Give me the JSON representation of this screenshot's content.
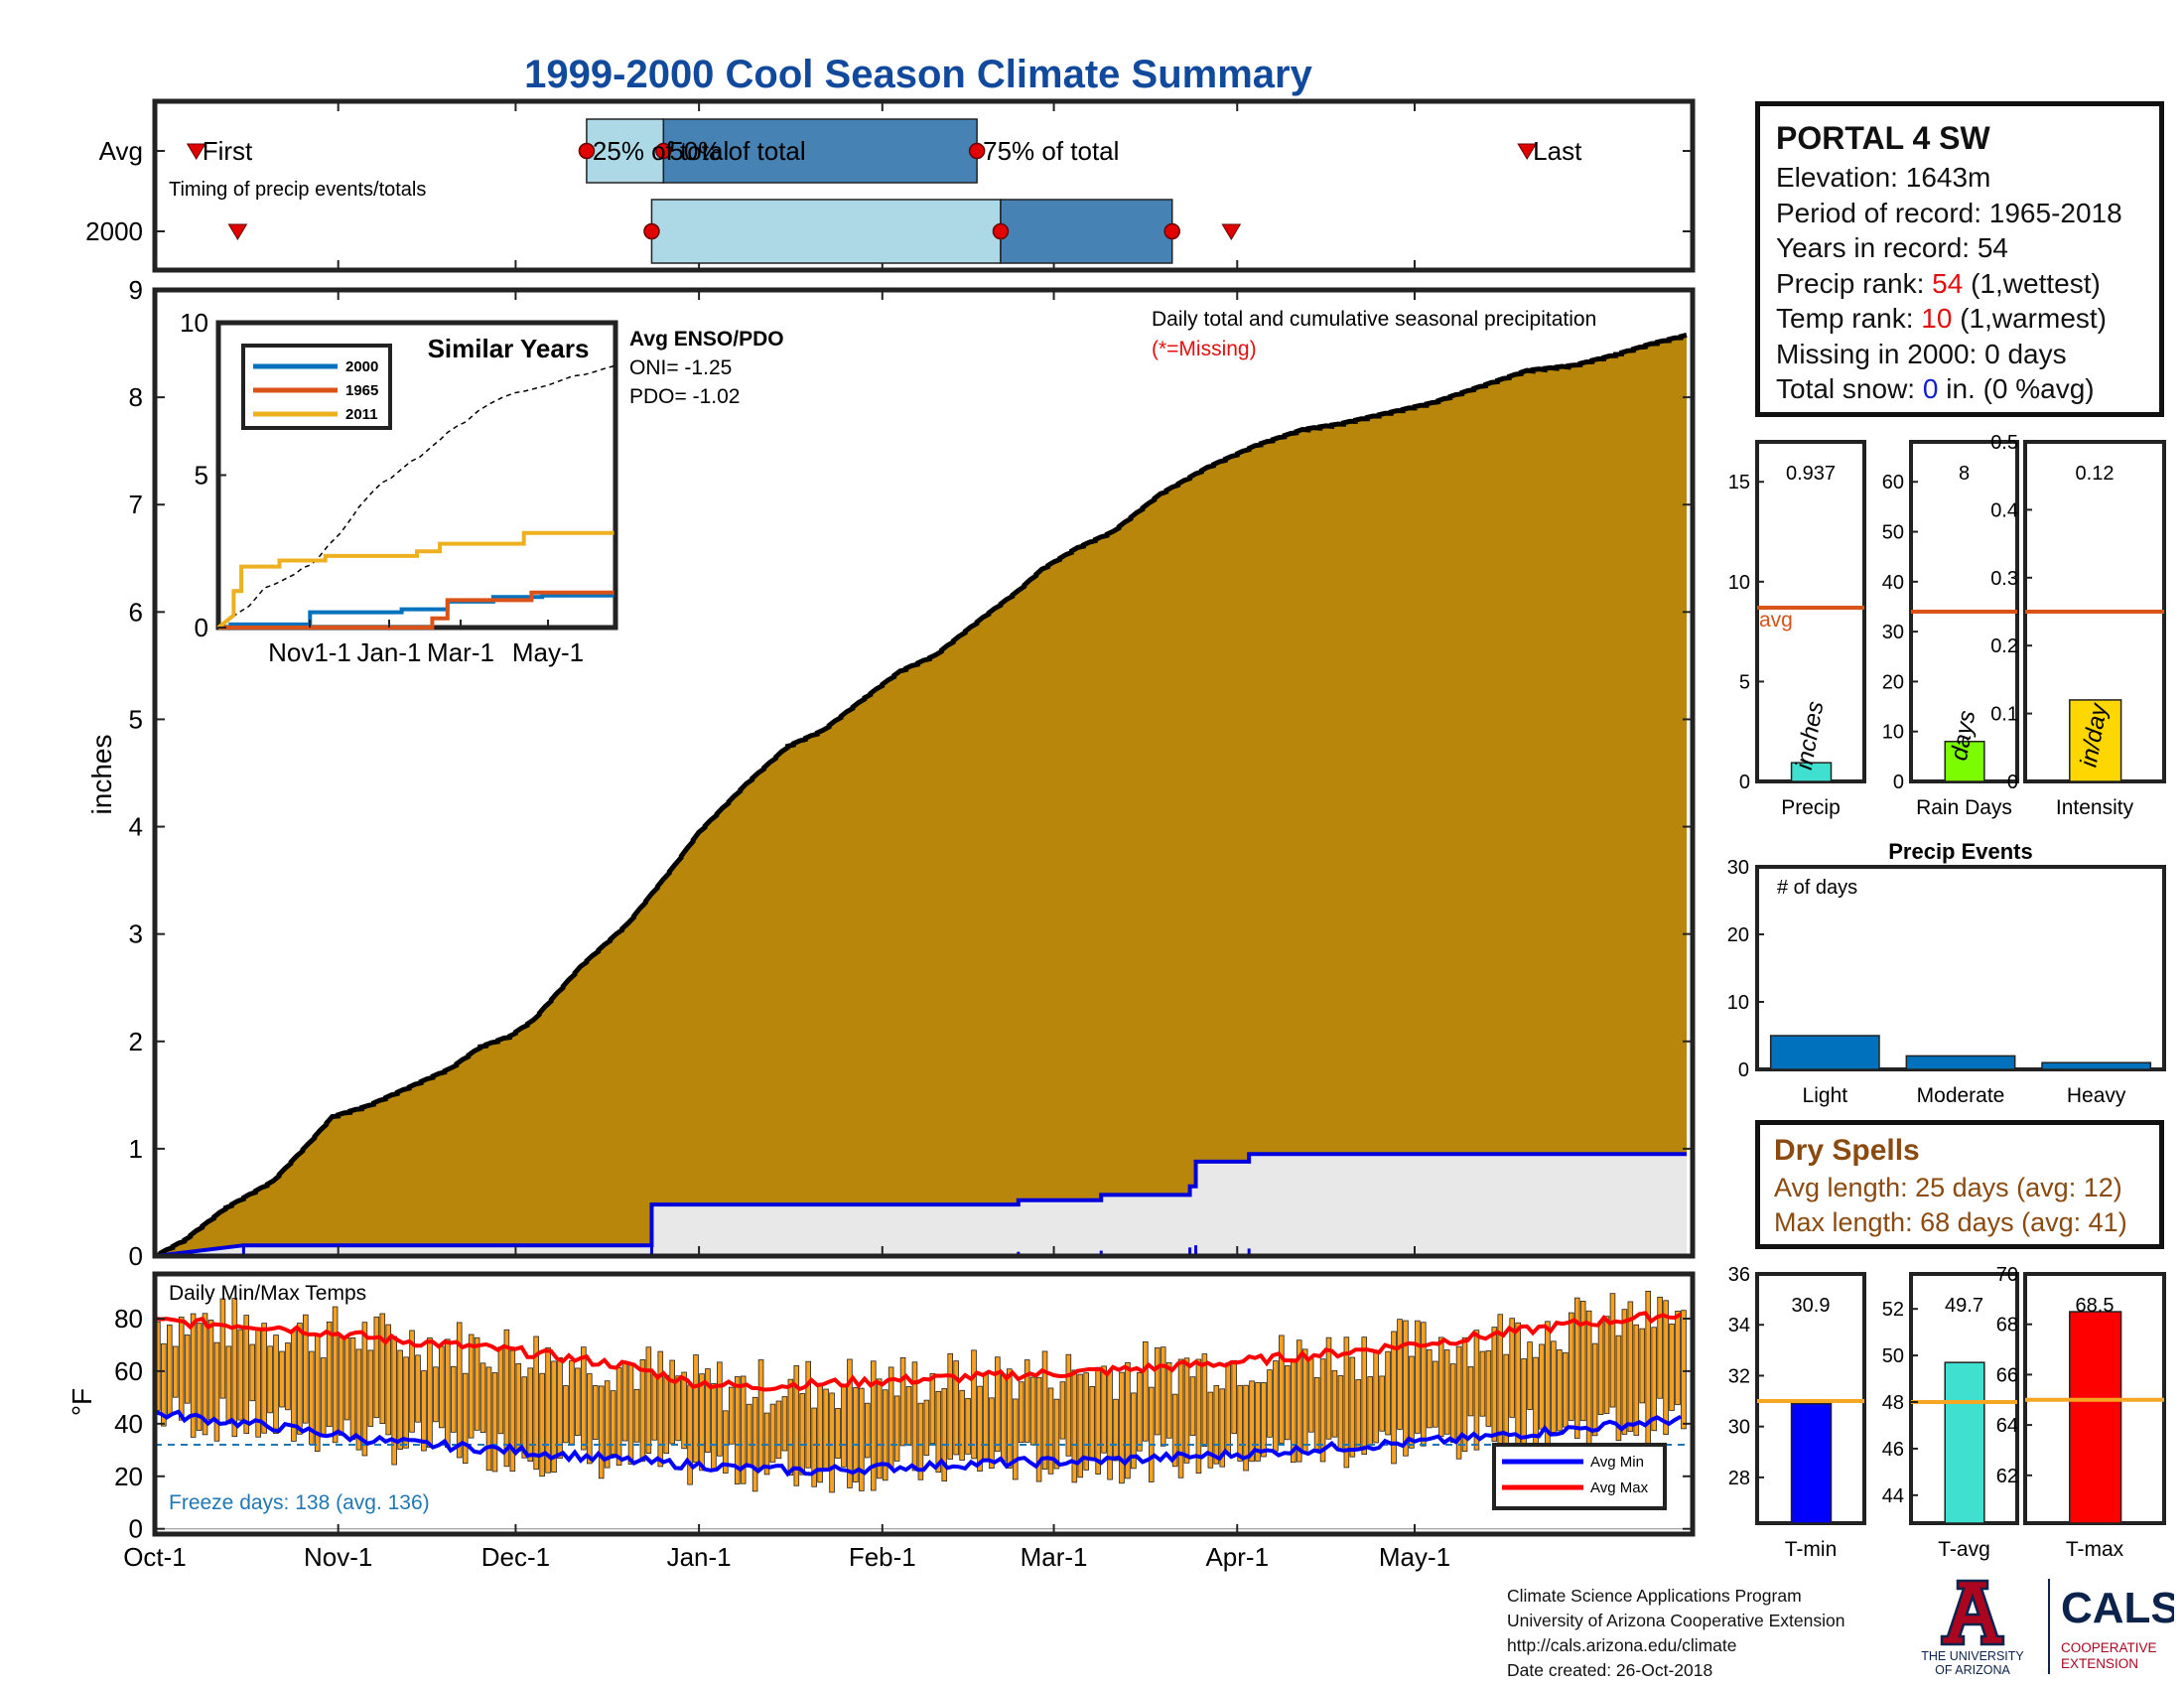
{
  "title": "1999-2000 Cool Season Climate Summary",
  "station": {
    "name": "PORTAL 4 SW",
    "elevation_label": "Elevation: ",
    "elevation": "1643m",
    "period_label": "Period of record: ",
    "period": "1965-2018",
    "years_label": "Years in record: ",
    "years": "54",
    "precip_rank_label": "Precip rank: ",
    "precip_rank": "54",
    "precip_rank_note": " (1,wettest)",
    "temp_rank_label": "Temp rank: ",
    "temp_rank": "10",
    "temp_rank_note": " (1,warmest)",
    "missing_label": "Missing in 2000: ",
    "missing": "0 days",
    "snow_label": "Total snow: ",
    "snow_value": "0",
    "snow_note": " in. (0 %avg)"
  },
  "dry_spells": {
    "heading": "Dry Spells",
    "avg_line": "Avg length: 25 days (avg: 12)",
    "max_line": "Max length: 68 days (avg: 41)"
  },
  "footer": {
    "line1": "Climate Science Applications Program",
    "line2": "University of Arizona Cooperative Extension",
    "line3": "http://cals.arizona.edu/climate",
    "line4": "Date created: 26-Oct-2018"
  },
  "logos": {
    "ua_line1": "THE UNIVERSITY",
    "ua_line2": "OF ARIZONA",
    "cals_name": "CALS",
    "cals_line1": "COOPERATIVE",
    "cals_line2": "EXTENSION",
    "ua_color": "#ab0520",
    "cals_color": "#0c234b"
  },
  "colors": {
    "cumulative_fill": "#b8860b",
    "current_year_line": "#0000dd",
    "light_blue": "#add8e6",
    "steel_blue": "#4682b4",
    "avg_line": "#d95319",
    "bar_blue": "#0072bd",
    "temp_bar": "#f5a020"
  },
  "chart_data": [
    {
      "type": "timing",
      "title": "Timing of precip events/totals",
      "rows": [
        "Avg",
        "2000"
      ],
      "x_ticks": [
        "Oct-1",
        "Nov-1",
        "Dec-1",
        "Jan-1",
        "Feb-1",
        "Mar-1",
        "Apr-1",
        "May-1"
      ],
      "avg": {
        "first": "Oct-8",
        "p25": "Dec-13",
        "p50": "Dec-26",
        "p75": "Feb-17",
        "last": "May-20",
        "labels": {
          "first": "First",
          "p25": "25% of total",
          "p50": "50% of total",
          "p75": "75% of total",
          "last": "Last"
        }
      },
      "y2000": {
        "first": "Oct-15",
        "p25": "Dec-24",
        "p50": "Feb-21",
        "p75": "Mar-21",
        "last": "Mar-31"
      }
    },
    {
      "type": "area",
      "title": "Daily total and cumulative seasonal precipitation",
      "note": "(*=Missing)",
      "ylabel": "inches",
      "ylim": [
        0,
        9
      ],
      "y_ticks": [
        0,
        1,
        2,
        3,
        4,
        5,
        6,
        7,
        8,
        9
      ],
      "x_ticks": [
        "Oct-1",
        "Nov-1",
        "Dec-1",
        "Jan-1",
        "Feb-1",
        "Mar-1",
        "Apr-1",
        "May-1"
      ],
      "avg_cumulative": [
        [
          0,
          0
        ],
        [
          5,
          0.15
        ],
        [
          12,
          0.45
        ],
        [
          20,
          0.7
        ],
        [
          26,
          1.05
        ],
        [
          30,
          1.3
        ],
        [
          36,
          1.4
        ],
        [
          42,
          1.55
        ],
        [
          50,
          1.75
        ],
        [
          55,
          1.95
        ],
        [
          60,
          2.05
        ],
        [
          64,
          2.2
        ],
        [
          72,
          2.7
        ],
        [
          80,
          3.1
        ],
        [
          88,
          3.65
        ],
        [
          92,
          3.95
        ],
        [
          100,
          4.4
        ],
        [
          107,
          4.75
        ],
        [
          113,
          4.9
        ],
        [
          120,
          5.2
        ],
        [
          126,
          5.45
        ],
        [
          132,
          5.6
        ],
        [
          140,
          5.95
        ],
        [
          146,
          6.2
        ],
        [
          150,
          6.4
        ],
        [
          156,
          6.6
        ],
        [
          162,
          6.75
        ],
        [
          170,
          7.1
        ],
        [
          178,
          7.35
        ],
        [
          186,
          7.55
        ],
        [
          194,
          7.7
        ],
        [
          200,
          7.75
        ],
        [
          208,
          7.85
        ],
        [
          216,
          7.95
        ],
        [
          224,
          8.1
        ],
        [
          232,
          8.25
        ],
        [
          240,
          8.3
        ],
        [
          247,
          8.4
        ],
        [
          253,
          8.5
        ],
        [
          259,
          8.58
        ]
      ],
      "series_2000_cumulative": [
        [
          0,
          0
        ],
        [
          15,
          0.1
        ],
        [
          84,
          0.1
        ],
        [
          84,
          0.48
        ],
        [
          146,
          0.48
        ],
        [
          146,
          0.52
        ],
        [
          160,
          0.52
        ],
        [
          160,
          0.57
        ],
        [
          175,
          0.57
        ],
        [
          175,
          0.65
        ],
        [
          176,
          0.65
        ],
        [
          176,
          0.88
        ],
        [
          185,
          0.88
        ],
        [
          185,
          0.95
        ],
        [
          259,
          0.95
        ]
      ],
      "series_2000_daily": [
        [
          15,
          0.1
        ],
        [
          84,
          0.38
        ],
        [
          146,
          0.04
        ],
        [
          160,
          0.05
        ],
        [
          175,
          0.08
        ],
        [
          176,
          0.23
        ],
        [
          185,
          0.07
        ]
      ]
    },
    {
      "type": "line",
      "title": "Similar Years",
      "ylim": [
        0,
        10
      ],
      "y_ticks": [
        0,
        5,
        10
      ],
      "x_ticks": [
        "Nov1-1",
        "Jan-1",
        "Mar-1",
        "May-1"
      ],
      "series": [
        {
          "name": "2000",
          "color": "#0072bd",
          "values": [
            [
              0,
              0
            ],
            [
              8,
              0
            ],
            [
              8,
              0.1
            ],
            [
              60,
              0.1
            ],
            [
              60,
              0.5
            ],
            [
              120,
              0.5
            ],
            [
              120,
              0.6
            ],
            [
              150,
              0.6
            ],
            [
              150,
              0.85
            ],
            [
              180,
              0.85
            ],
            [
              180,
              1.0
            ],
            [
              212,
              1.0
            ],
            [
              212,
              1.05
            ],
            [
              259,
              1.05
            ]
          ]
        },
        {
          "name": "1965",
          "color": "#d95319",
          "values": [
            [
              0,
              0
            ],
            [
              140,
              0
            ],
            [
              140,
              0.3
            ],
            [
              150,
              0.3
            ],
            [
              150,
              0.9
            ],
            [
              205,
              0.9
            ],
            [
              205,
              1.15
            ],
            [
              259,
              1.15
            ]
          ]
        },
        {
          "name": "2011",
          "color": "#edb120",
          "values": [
            [
              0,
              0
            ],
            [
              10,
              0.4
            ],
            [
              10,
              1.2
            ],
            [
              15,
              1.2
            ],
            [
              15,
              2.0
            ],
            [
              40,
              2.0
            ],
            [
              40,
              2.2
            ],
            [
              70,
              2.2
            ],
            [
              70,
              2.35
            ],
            [
              130,
              2.35
            ],
            [
              130,
              2.5
            ],
            [
              145,
              2.5
            ],
            [
              145,
              2.75
            ],
            [
              200,
              2.75
            ],
            [
              200,
              3.1
            ],
            [
              259,
              3.1
            ]
          ]
        }
      ],
      "avg_enso_pdo": {
        "heading": "Avg ENSO/PDO",
        "oni": "ONI= -1.25",
        "pdo": "PDO= -1.02"
      }
    },
    {
      "type": "bar",
      "title": "Precip",
      "categories": [
        "Precip"
      ],
      "values": [
        0.937
      ],
      "value_label": "0.937",
      "avg": 8.7,
      "ylim": [
        0,
        17
      ],
      "y_ticks": [
        0,
        5,
        10,
        15
      ],
      "unit": "inches",
      "avg_label": "avg",
      "color": "#40e0d0"
    },
    {
      "type": "bar",
      "title": "Rain Days",
      "categories": [
        "Rain Days"
      ],
      "values": [
        8
      ],
      "value_label": "8",
      "avg": 34,
      "ylim": [
        0,
        68
      ],
      "y_ticks": [
        0,
        10,
        20,
        30,
        40,
        50,
        60
      ],
      "unit": "days",
      "color": "#7cfc00"
    },
    {
      "type": "bar",
      "title": "Intensity",
      "categories": [
        "Intensity"
      ],
      "values": [
        0.12
      ],
      "value_label": "0.12",
      "avg": 0.25,
      "ylim": [
        0,
        0.5
      ],
      "y_ticks": [
        0,
        0.1,
        0.2,
        0.3,
        0.4,
        0.5
      ],
      "unit": "in/day",
      "color": "#ffd700"
    },
    {
      "type": "bar",
      "title": "Precip Events",
      "ylabel": "# of days",
      "categories": [
        "Light",
        "Moderate",
        "Heavy"
      ],
      "values": [
        5,
        2,
        1
      ],
      "ylim": [
        0,
        30
      ],
      "y_ticks": [
        0,
        10,
        20,
        30
      ]
    },
    {
      "type": "bar",
      "title": "Daily Min/Max Temps",
      "ylabel": "°F",
      "ylim": [
        -2,
        97
      ],
      "y_ticks": [
        0,
        20,
        40,
        60,
        80
      ],
      "x_ticks": [
        "Oct-1",
        "Nov-1",
        "Dec-1",
        "Jan-1",
        "Feb-1",
        "Mar-1",
        "Apr-1",
        "May-1"
      ],
      "freeze_line": 32,
      "freeze_label": "Freeze days: 138 (avg. 136)",
      "legend": [
        "Avg Min",
        "Avg Max"
      ],
      "avg_max": [
        [
          0,
          79
        ],
        [
          20,
          77
        ],
        [
          40,
          72
        ],
        [
          60,
          68
        ],
        [
          80,
          62
        ],
        [
          90,
          56
        ],
        [
          100,
          54
        ],
        [
          110,
          55
        ],
        [
          120,
          56
        ],
        [
          140,
          58
        ],
        [
          160,
          60
        ],
        [
          180,
          63
        ],
        [
          200,
          67
        ],
        [
          220,
          72
        ],
        [
          240,
          78
        ],
        [
          259,
          82
        ]
      ],
      "avg_min": [
        [
          0,
          44
        ],
        [
          20,
          39
        ],
        [
          40,
          33
        ],
        [
          60,
          30
        ],
        [
          80,
          26
        ],
        [
          100,
          23
        ],
        [
          110,
          22
        ],
        [
          120,
          23
        ],
        [
          140,
          25
        ],
        [
          160,
          26
        ],
        [
          180,
          28
        ],
        [
          200,
          31
        ],
        [
          220,
          34
        ],
        [
          240,
          38
        ],
        [
          259,
          42
        ]
      ]
    },
    {
      "type": "bar",
      "title": "T-min",
      "categories": [
        "T-min"
      ],
      "values": [
        30.9
      ],
      "value_label": "30.9",
      "avg": 31.0,
      "ylim": [
        26.2,
        36
      ],
      "y_ticks": [
        28,
        30,
        32,
        34,
        36
      ],
      "color": "#0000ff"
    },
    {
      "type": "bar",
      "title": "T-avg",
      "categories": [
        "T-avg"
      ],
      "values": [
        49.7
      ],
      "value_label": "49.7",
      "avg": 48.0,
      "ylim": [
        42.8,
        53.5
      ],
      "y_ticks": [
        44,
        46,
        48,
        50,
        52
      ],
      "color": "#40e0d0"
    },
    {
      "type": "bar",
      "title": "T-max",
      "categories": [
        "T-max"
      ],
      "values": [
        68.5
      ],
      "value_label": "68.5",
      "avg": 65.0,
      "ylim": [
        60.1,
        70
      ],
      "y_ticks": [
        62,
        64,
        66,
        68,
        70
      ],
      "color": "#ff0000"
    }
  ]
}
